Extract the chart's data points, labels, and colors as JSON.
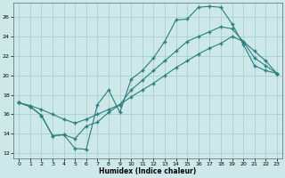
{
  "xlabel": "Humidex (Indice chaleur)",
  "bg_color": "#cce8e8",
  "grid_color": "#aacfcf",
  "line_color": "#2d7d7d",
  "xlim": [
    -0.5,
    23.5
  ],
  "ylim": [
    11.5,
    27.5
  ],
  "xticks": [
    0,
    1,
    2,
    3,
    4,
    5,
    6,
    7,
    8,
    9,
    10,
    11,
    12,
    13,
    14,
    15,
    16,
    17,
    18,
    19,
    20,
    21,
    22,
    23
  ],
  "yticks": [
    12,
    14,
    16,
    18,
    20,
    22,
    24,
    26
  ],
  "line1_jagged": {
    "x": [
      0,
      1,
      2,
      3,
      4,
      5,
      6,
      7,
      8,
      9,
      10,
      11,
      12,
      13,
      14,
      15,
      16,
      17,
      18,
      19,
      20,
      21,
      22,
      23
    ],
    "y": [
      17.2,
      16.8,
      15.9,
      13.8,
      13.9,
      12.5,
      12.4,
      17.0,
      18.5,
      16.2,
      19.6,
      20.5,
      21.8,
      23.5,
      25.7,
      25.8,
      27.0,
      27.1,
      27.0,
      25.3,
      23.2,
      21.0,
      20.5,
      20.2
    ]
  },
  "line2_smooth": {
    "x": [
      0,
      1,
      2,
      3,
      4,
      5,
      6,
      7,
      8,
      9,
      10,
      11,
      12,
      13,
      14,
      15,
      16,
      17,
      18,
      19,
      20,
      21,
      22,
      23
    ],
    "y": [
      17.2,
      16.9,
      16.5,
      16.0,
      15.5,
      15.1,
      15.5,
      16.0,
      16.5,
      17.0,
      17.8,
      18.5,
      19.2,
      20.0,
      20.8,
      21.5,
      22.2,
      22.8,
      23.3,
      24.0,
      23.5,
      22.5,
      21.5,
      20.2
    ]
  },
  "line3_mid": {
    "x": [
      0,
      1,
      2,
      3,
      4,
      5,
      6,
      7,
      8,
      9,
      10,
      11,
      12,
      13,
      14,
      15,
      16,
      17,
      18,
      19,
      20,
      21,
      22,
      23
    ],
    "y": [
      17.2,
      16.8,
      15.9,
      13.8,
      13.9,
      13.5,
      14.8,
      15.2,
      16.2,
      17.0,
      18.5,
      19.5,
      20.5,
      21.5,
      22.5,
      23.5,
      24.0,
      24.5,
      25.0,
      24.8,
      23.5,
      21.8,
      21.0,
      20.2
    ]
  }
}
